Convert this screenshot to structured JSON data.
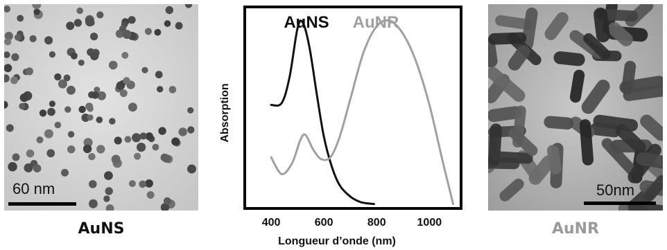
{
  "left_panel": {
    "caption": "AuNS",
    "scale_label": "60 nm"
  },
  "right_panel": {
    "caption": "AuNR",
    "scale_label": "50nm"
  },
  "chart_data": {
    "type": "line",
    "title": "",
    "xlabel": "Longueur d’onde (nm)",
    "ylabel": "Absorption",
    "x_ticks": [
      400,
      600,
      800,
      1000
    ],
    "xlim": [
      300,
      1120
    ],
    "ylim": [
      0,
      1
    ],
    "grid": false,
    "legend": "top",
    "series": [
      {
        "name": "AuNS",
        "color": "#111111",
        "x": [
          400,
          440,
          470,
          500,
          520,
          545,
          575,
          600,
          630,
          660,
          700,
          740,
          790
        ],
        "y": [
          0.55,
          0.56,
          0.7,
          0.96,
          0.99,
          0.86,
          0.59,
          0.38,
          0.22,
          0.12,
          0.06,
          0.03,
          0.02
        ]
      },
      {
        "name": "AuNR",
        "color": "#a0a0a0",
        "x": [
          400,
          440,
          480,
          510,
          530,
          560,
          590,
          625,
          660,
          700,
          750,
          800,
          850,
          900,
          950,
          1000,
          1050,
          1090
        ],
        "y": [
          0.27,
          0.18,
          0.24,
          0.36,
          0.39,
          0.31,
          0.26,
          0.27,
          0.38,
          0.58,
          0.83,
          0.97,
          1.0,
          0.93,
          0.78,
          0.55,
          0.25,
          0.02
        ]
      }
    ]
  }
}
